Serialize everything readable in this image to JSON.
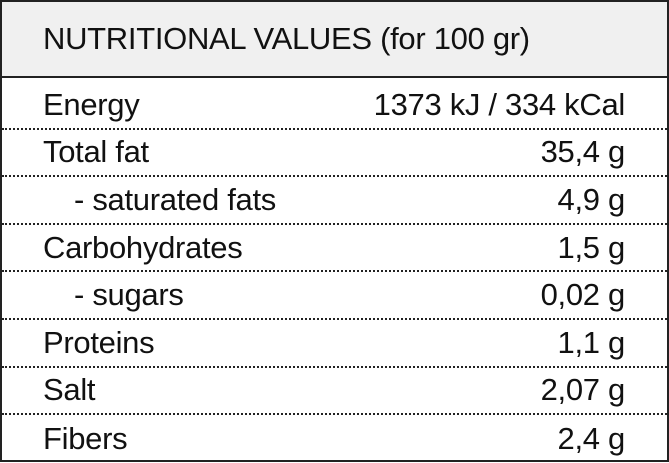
{
  "header": {
    "title": "NUTRITIONAL VALUES (for 100 gr)"
  },
  "table": {
    "rows": [
      [
        "Energy",
        "1373 kJ / 334 kCal"
      ],
      [
        "Total fat",
        "35,4 g"
      ],
      [
        "- saturated fats",
        "4,9 g"
      ],
      [
        "Carbohydrates",
        "1,5 g"
      ],
      [
        "- sugars",
        "0,02 g"
      ],
      [
        "Proteins",
        "1,1 g"
      ],
      [
        "Salt",
        "2,07 g"
      ],
      [
        "Fibers",
        "2,4 g"
      ]
    ]
  }
}
